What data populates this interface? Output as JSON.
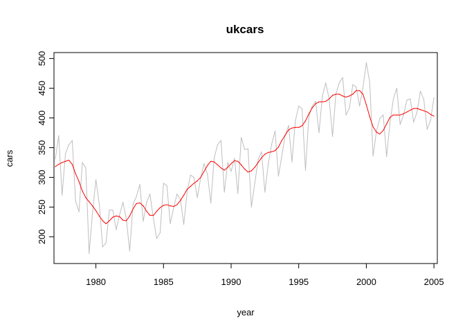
{
  "chart_data": {
    "type": "line",
    "title": "ukcars",
    "xlabel": "year",
    "ylabel": "cars",
    "xlim": [
      1976.9,
      2005.25
    ],
    "ylim": [
      155,
      510
    ],
    "xticks": [
      1980,
      1985,
      1990,
      1995,
      2000,
      2005
    ],
    "yticks": [
      200,
      250,
      300,
      350,
      400,
      450,
      500
    ],
    "grid": false,
    "legend": "none",
    "series": [
      {
        "color": "#bebebe",
        "frequency": "quarterly",
        "x": [
          1977.0,
          1977.25,
          1977.5,
          1977.75,
          1978.0,
          1978.25,
          1978.5,
          1978.75,
          1979.0,
          1979.25,
          1979.5,
          1979.75,
          1980.0,
          1980.25,
          1980.5,
          1980.75,
          1981.0,
          1981.25,
          1981.5,
          1981.75,
          1982.0,
          1982.25,
          1982.5,
          1982.75,
          1983.0,
          1983.25,
          1983.5,
          1983.75,
          1984.0,
          1984.25,
          1984.5,
          1984.75,
          1985.0,
          1985.25,
          1985.5,
          1985.75,
          1986.0,
          1986.25,
          1986.5,
          1986.75,
          1987.0,
          1987.25,
          1987.5,
          1987.75,
          1988.0,
          1988.25,
          1988.5,
          1988.75,
          1989.0,
          1989.25,
          1989.5,
          1989.75,
          1990.0,
          1990.25,
          1990.5,
          1990.75,
          1991.0,
          1991.25,
          1991.5,
          1991.75,
          1992.0,
          1992.25,
          1992.5,
          1992.75,
          1993.0,
          1993.25,
          1993.5,
          1993.75,
          1994.0,
          1994.25,
          1994.5,
          1994.75,
          1995.0,
          1995.25,
          1995.5,
          1995.75,
          1996.0,
          1996.25,
          1996.5,
          1996.75,
          1997.0,
          1997.25,
          1997.5,
          1997.75,
          1998.0,
          1998.25,
          1998.5,
          1998.75,
          1999.0,
          1999.25,
          1999.5,
          1999.75,
          2000.0,
          2000.25,
          2000.5,
          2000.75,
          2001.0,
          2001.25,
          2001.5,
          2001.75,
          2002.0,
          2002.25,
          2002.5,
          2002.75,
          2003.0,
          2003.25,
          2003.5,
          2003.75,
          2004.0,
          2004.25,
          2004.5,
          2004.75,
          2005.0
        ],
        "values": [
          331,
          370,
          270,
          340,
          355,
          362,
          260,
          242,
          325,
          316,
          172,
          240,
          296,
          255,
          183,
          190,
          245,
          245,
          212,
          237,
          258,
          230,
          176,
          255,
          268,
          288,
          226,
          258,
          272,
          231,
          197,
          207,
          290,
          286,
          222,
          249,
          272,
          263,
          221,
          276,
          304,
          300,
          266,
          299,
          323,
          305,
          257,
          333,
          355,
          362,
          275,
          325,
          310,
          332,
          273,
          367,
          347,
          348,
          250,
          290,
          330,
          343,
          275,
          323,
          356,
          378,
          302,
          336,
          371,
          387,
          326,
          395,
          420,
          415,
          312,
          402,
          420,
          428,
          375,
          437,
          459,
          432,
          369,
          440,
          459,
          468,
          405,
          417,
          456,
          452,
          420,
          451,
          493,
          460,
          336,
          378,
          399,
          405,
          335,
          392,
          432,
          450,
          389,
          405,
          430,
          432,
          393,
          410,
          445,
          431,
          381,
          396,
          434
        ]
      },
      {
        "color": "#ff0000",
        "x": [
          1977.0,
          1977.25,
          1977.5,
          1977.75,
          1978.0,
          1978.25,
          1978.5,
          1978.75,
          1979.0,
          1979.25,
          1979.5,
          1979.75,
          1980.0,
          1980.25,
          1980.5,
          1980.75,
          1981.0,
          1981.25,
          1981.5,
          1981.75,
          1982.0,
          1982.25,
          1982.5,
          1982.75,
          1983.0,
          1983.25,
          1983.5,
          1983.75,
          1984.0,
          1984.25,
          1984.5,
          1984.75,
          1985.0,
          1985.25,
          1985.5,
          1985.75,
          1986.0,
          1986.25,
          1986.5,
          1986.75,
          1987.0,
          1987.25,
          1987.5,
          1987.75,
          1988.0,
          1988.25,
          1988.5,
          1988.75,
          1989.0,
          1989.25,
          1989.5,
          1989.75,
          1990.0,
          1990.25,
          1990.5,
          1990.75,
          1991.0,
          1991.25,
          1991.5,
          1991.75,
          1992.0,
          1992.25,
          1992.5,
          1992.75,
          1993.0,
          1993.25,
          1993.5,
          1993.75,
          1994.0,
          1994.25,
          1994.5,
          1994.75,
          1995.0,
          1995.25,
          1995.5,
          1995.75,
          1996.0,
          1996.25,
          1996.5,
          1996.75,
          1997.0,
          1997.25,
          1997.5,
          1997.75,
          1998.0,
          1998.25,
          1998.5,
          1998.75,
          1999.0,
          1999.25,
          1999.5,
          1999.75,
          2000.0,
          2000.25,
          2000.5,
          2000.75,
          2001.0,
          2001.25,
          2001.5,
          2001.75,
          2002.0,
          2002.25,
          2002.5,
          2002.75,
          2003.0,
          2003.25,
          2003.5,
          2003.75,
          2004.0,
          2004.25,
          2004.5,
          2004.75,
          2005.0
        ],
        "values": [
          318,
          322,
          325,
          327,
          329,
          322,
          306,
          293,
          277,
          266,
          259,
          252,
          244,
          235,
          227,
          222,
          227,
          233,
          235,
          234,
          228,
          227,
          235,
          247,
          256,
          257,
          252,
          243,
          236,
          236,
          243,
          249,
          253,
          254,
          252,
          251,
          254,
          261,
          270,
          280,
          285,
          290,
          294,
          300,
          310,
          320,
          327,
          326,
          321,
          316,
          312,
          317,
          323,
          328,
          327,
          321,
          314,
          309,
          311,
          317,
          325,
          333,
          339,
          342,
          343,
          345,
          351,
          362,
          371,
          380,
          383,
          384,
          384,
          387,
          395,
          407,
          417,
          424,
          427,
          427,
          428,
          432,
          438,
          440,
          440,
          437,
          435,
          437,
          440,
          446,
          446,
          440,
          422,
          402,
          385,
          376,
          373,
          379,
          390,
          401,
          405,
          405,
          405,
          407,
          410,
          413,
          416,
          416,
          414,
          412,
          410,
          406,
          403
        ]
      }
    ]
  }
}
